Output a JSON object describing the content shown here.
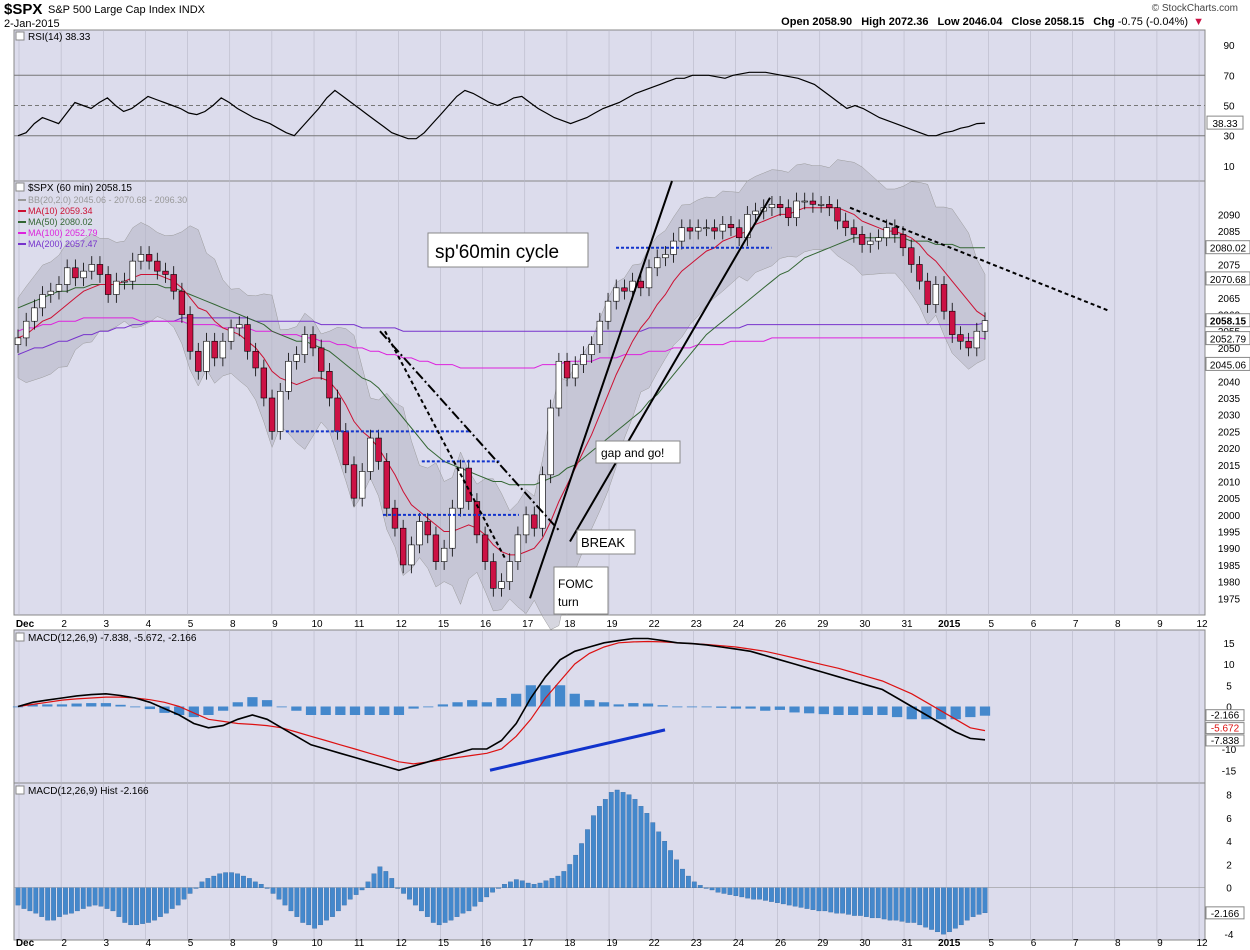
{
  "header": {
    "symbol": "$SPX",
    "description": "S&P 500 Large Cap Index",
    "exchange": "INDX",
    "date": "2-Jan-2015",
    "brand": "© StockCharts.com",
    "open_label": "Open",
    "open": "2058.90",
    "high_label": "High",
    "high": "2072.36",
    "low_label": "Low",
    "low": "2046.04",
    "close_label": "Close",
    "close": "2058.15",
    "chg_label": "Chg",
    "chg": "-0.75 (-0.04%)"
  },
  "colors": {
    "panel_bg": "#dcdcec",
    "up": "#ffffff",
    "down": "#cc1144",
    "bb_fill": "#b4b4c4",
    "ma10": "#cc1133",
    "ma50": "#336633",
    "ma100": "#dd22dd",
    "ma200": "#7733cc",
    "blue": "#1133cc",
    "hist": "#4488cc",
    "grid": "#b8b8c8"
  },
  "chart_data": [
    {
      "type": "line",
      "title": "RSI(14) 38.33",
      "series": [
        {
          "name": "RSI(14)",
          "values": [
            30,
            32,
            38,
            42,
            40,
            38,
            45,
            52,
            50,
            48,
            52,
            55,
            50,
            46,
            48,
            52,
            56,
            54,
            52,
            50,
            48,
            45,
            44,
            46,
            50,
            55,
            52,
            48,
            45,
            42,
            40,
            38,
            35,
            32,
            30,
            36,
            42,
            48,
            55,
            60,
            56,
            52,
            48,
            44,
            40,
            36,
            32,
            30,
            28,
            28,
            32,
            38,
            44,
            50,
            56,
            60,
            58,
            55,
            52,
            50,
            52,
            55,
            56,
            52,
            48,
            45,
            42,
            40,
            38,
            40,
            42,
            45,
            48,
            50,
            52,
            55,
            58,
            60,
            62,
            64,
            66,
            68,
            68,
            70,
            70,
            70,
            69,
            68,
            70,
            71,
            72,
            72,
            72,
            71,
            70,
            69,
            68,
            66,
            64,
            60,
            56,
            52,
            48,
            50,
            48,
            45,
            42,
            40,
            38,
            36,
            34,
            32,
            30,
            30,
            32,
            33,
            35,
            36,
            38,
            38.33
          ]
        }
      ],
      "right_ticks": [
        "90",
        "70",
        "50",
        "30",
        "10"
      ],
      "reference_lines": [
        70,
        50,
        30
      ],
      "ylim": [
        0,
        100
      ],
      "last_value": "38.33"
    },
    {
      "type": "candlestick",
      "title": "$SPX (60 min) 2058.15",
      "legend": [
        {
          "label": "BB(20,2.0) 2045.06 - 2070.68 - 2096.30",
          "color": "#999999"
        },
        {
          "label": "MA(10) 2059.34",
          "color": "#cc1133"
        },
        {
          "label": "MA(50) 2080.02",
          "color": "#336633"
        },
        {
          "label": "MA(100) 2052.79",
          "color": "#dd22dd"
        },
        {
          "label": "MA(200) 2057.47",
          "color": "#7733cc"
        }
      ],
      "x_tick_labels": [
        "Dec",
        "2",
        "3",
        "4",
        "5",
        "8",
        "9",
        "10",
        "11",
        "12",
        "15",
        "16",
        "17",
        "18",
        "19",
        "22",
        "23",
        "24",
        "26",
        "29",
        "30",
        "31",
        "2015",
        "5",
        "6",
        "7",
        "8",
        "9",
        "12"
      ],
      "y_ticks": [
        1975,
        1980,
        1985,
        1990,
        1995,
        2000,
        2005,
        2010,
        2015,
        2020,
        2025,
        2030,
        2035,
        2040,
        2045,
        2050,
        2055,
        2060,
        2065,
        2070,
        2075,
        2080,
        2085,
        2090
      ],
      "ylim": [
        1970,
        2100
      ],
      "closes": [
        2053,
        2058,
        2062,
        2066,
        2067,
        2069,
        2074,
        2071,
        2073,
        2075,
        2072,
        2066,
        2070,
        2070,
        2076,
        2078,
        2076,
        2073,
        2072,
        2067,
        2060,
        2049,
        2043,
        2052,
        2047,
        2052,
        2056,
        2057,
        2049,
        2044,
        2035,
        2025,
        2037,
        2046,
        2048,
        2054,
        2050,
        2043,
        2035,
        2025,
        2015,
        2005,
        2013,
        2023,
        2016,
        2002,
        1996,
        1985,
        1991,
        1998,
        1994,
        1986,
        1990,
        2002,
        2014,
        2004,
        1994,
        1986,
        1978,
        1980,
        1986,
        1994,
        2000,
        1996,
        2012,
        2032,
        2046,
        2041,
        2045,
        2048,
        2051,
        2058,
        2064,
        2068,
        2067,
        2070,
        2068,
        2074,
        2077,
        2078,
        2082,
        2086,
        2085,
        2086,
        2086,
        2085,
        2087,
        2086,
        2083,
        2090,
        2091,
        2092,
        2093,
        2092,
        2089,
        2094,
        2094,
        2093,
        2093,
        2092,
        2088,
        2086,
        2084,
        2081,
        2082,
        2083,
        2086,
        2084,
        2080,
        2075,
        2070,
        2063,
        2069,
        2061,
        2054,
        2052,
        2050,
        2055,
        2058.15
      ],
      "ma10": [
        2053,
        2054,
        2056,
        2058,
        2059,
        2061,
        2063,
        2065,
        2067,
        2068,
        2069,
        2069,
        2069,
        2070,
        2071,
        2072,
        2072,
        2072,
        2071,
        2070,
        2068,
        2065,
        2062,
        2061,
        2058,
        2056,
        2055,
        2054,
        2052,
        2050,
        2047,
        2043,
        2041,
        2040,
        2039,
        2040,
        2041,
        2041,
        2040,
        2037,
        2033,
        2028,
        2025,
        2023,
        2020,
        2016,
        2012,
        2007,
        2003,
        2001,
        1999,
        1997,
        1995,
        1995,
        1996,
        1997,
        1996,
        1994,
        1991,
        1989,
        1988,
        1988,
        1989,
        1990,
        1993,
        1998,
        2004,
        2009,
        2014,
        2019,
        2024,
        2030,
        2036,
        2042,
        2047,
        2052,
        2056,
        2059,
        2063,
        2066,
        2070,
        2073,
        2075,
        2077,
        2079,
        2080,
        2082,
        2083,
        2084,
        2085,
        2087,
        2088,
        2089,
        2090,
        2090,
        2091,
        2092,
        2092,
        2092,
        2092,
        2092,
        2091,
        2090,
        2088,
        2087,
        2086,
        2085,
        2085,
        2084,
        2083,
        2081,
        2078,
        2076,
        2073,
        2070,
        2067,
        2064,
        2061,
        2059.34
      ],
      "ma50": [
        2062,
        2063,
        2064,
        2065,
        2066,
        2067,
        2067,
        2068,
        2068,
        2069,
        2069,
        2069,
        2069,
        2069,
        2069,
        2069,
        2069,
        2069,
        2068,
        2068,
        2067,
        2066,
        2065,
        2064,
        2063,
        2062,
        2061,
        2060,
        2059,
        2058,
        2057,
        2055,
        2054,
        2053,
        2052,
        2052,
        2051,
        2050,
        2049,
        2047,
        2045,
        2043,
        2041,
        2040,
        2038,
        2035,
        2032,
        2029,
        2026,
        2023,
        2020,
        2018,
        2016,
        2015,
        2014,
        2013,
        2012,
        2011,
        2010,
        2010,
        2009,
        2009,
        2009,
        2009,
        2010,
        2011,
        2012,
        2014,
        2015,
        2017,
        2019,
        2021,
        2023,
        2025,
        2027,
        2029,
        2031,
        2034,
        2036,
        2039,
        2042,
        2045,
        2048,
        2051,
        2054,
        2056,
        2058,
        2060,
        2062,
        2064,
        2066,
        2068,
        2070,
        2072,
        2073,
        2075,
        2077,
        2078,
        2079,
        2080,
        2081,
        2082,
        2083,
        2083,
        2083,
        2083,
        2083,
        2083,
        2083,
        2082,
        2082,
        2082,
        2081,
        2081,
        2081,
        2080,
        2080,
        2080,
        2080.02
      ],
      "ma100": [
        2055,
        2056,
        2056,
        2057,
        2057,
        2058,
        2058,
        2058,
        2059,
        2059,
        2059,
        2059,
        2059,
        2059,
        2059,
        2058,
        2058,
        2058,
        2058,
        2058,
        2058,
        2057,
        2057,
        2057,
        2057,
        2056,
        2056,
        2056,
        2056,
        2055,
        2055,
        2055,
        2054,
        2054,
        2054,
        2053,
        2053,
        2052,
        2052,
        2051,
        2051,
        2050,
        2050,
        2049,
        2049,
        2048,
        2048,
        2047,
        2047,
        2046,
        2046,
        2045,
        2045,
        2045,
        2044,
        2044,
        2044,
        2044,
        2044,
        2044,
        2044,
        2044,
        2044,
        2044,
        2045,
        2045,
        2045,
        2046,
        2046,
        2046,
        2046,
        2047,
        2047,
        2047,
        2048,
        2048,
        2048,
        2049,
        2049,
        2049,
        2050,
        2050,
        2050,
        2051,
        2051,
        2051,
        2051,
        2052,
        2052,
        2052,
        2052,
        2052,
        2053,
        2053,
        2053,
        2053,
        2053,
        2053,
        2053,
        2053,
        2053,
        2053,
        2053,
        2053,
        2053,
        2053,
        2053,
        2053,
        2053,
        2053,
        2053,
        2053,
        2053,
        2053,
        2053,
        2053,
        2053,
        2053,
        2052.79
      ],
      "ma200": [
        2048,
        2049,
        2050,
        2050,
        2051,
        2052,
        2052,
        2053,
        2054,
        2054,
        2055,
        2055,
        2056,
        2056,
        2057,
        2057,
        2058,
        2058,
        2058,
        2058,
        2059,
        2059,
        2059,
        2059,
        2059,
        2059,
        2059,
        2059,
        2059,
        2058,
        2058,
        2058,
        2058,
        2058,
        2058,
        2058,
        2058,
        2057,
        2057,
        2057,
        2057,
        2057,
        2056,
        2056,
        2056,
        2056,
        2056,
        2055,
        2055,
        2055,
        2055,
        2055,
        2055,
        2055,
        2055,
        2055,
        2055,
        2055,
        2055,
        2055,
        2055,
        2055,
        2055,
        2055,
        2055,
        2055,
        2055,
        2055,
        2055,
        2055,
        2055,
        2055,
        2055,
        2055,
        2055,
        2055,
        2055,
        2056,
        2056,
        2056,
        2056,
        2056,
        2056,
        2056,
        2056,
        2056,
        2056,
        2056,
        2056,
        2057,
        2057,
        2057,
        2057,
        2057,
        2057,
        2057,
        2057,
        2057,
        2057,
        2057,
        2057,
        2057,
        2057,
        2057,
        2057,
        2057,
        2057,
        2057,
        2057,
        2057,
        2057,
        2057,
        2057,
        2057,
        2057,
        2057,
        2057,
        2057,
        2057.47
      ],
      "price_labels": [
        {
          "value": 2080.02,
          "text": "2080.02"
        },
        {
          "value": 2070.68,
          "text": "2070.68"
        },
        {
          "value": 2058.15,
          "text": "2058.15"
        },
        {
          "value": 2052.79,
          "text": "2052.79"
        },
        {
          "value": 2045.06,
          "text": "2045.06"
        }
      ],
      "annotations": [
        "sp'60min cycle",
        "gap and go!",
        "BREAK",
        "FOMC",
        "turn"
      ]
    },
    {
      "type": "line",
      "title": "MACD(12,26,9) -7.838, -5.672, -2.166",
      "series": [
        {
          "name": "MACD",
          "values": [
            0,
            1,
            1.5,
            2,
            2.5,
            2.8,
            3,
            2.6,
            2,
            1,
            -0.5,
            -2,
            -4,
            -5,
            -4.5,
            -3,
            -2,
            -3,
            -5,
            -7,
            -9,
            -10,
            -11,
            -12,
            -13,
            -14,
            -15,
            -14,
            -13,
            -12,
            -11,
            -10,
            -10,
            -8,
            -4,
            2,
            7,
            11,
            13,
            14,
            15,
            15.5,
            16,
            16,
            15.5,
            15,
            14.8,
            14.5,
            14,
            13.5,
            13,
            12,
            11,
            10,
            9,
            8,
            7,
            6,
            5,
            4,
            2,
            0,
            -2,
            -4,
            -6,
            -7.5,
            -7.838
          ]
        },
        {
          "name": "Signal",
          "values": [
            0,
            0.5,
            1,
            1.5,
            1.8,
            2,
            2.2,
            2.2,
            2,
            1.6,
            1,
            0,
            -1.5,
            -3,
            -3.5,
            -4,
            -4.2,
            -4.5,
            -5,
            -6,
            -7,
            -8,
            -9,
            -10,
            -11,
            -12,
            -13,
            -13.5,
            -13,
            -12.5,
            -12,
            -11.5,
            -11,
            -10,
            -7,
            -3,
            2,
            6,
            10,
            12.5,
            14,
            15,
            15.2,
            15.3,
            15.2,
            15,
            14.8,
            14.6,
            14.3,
            14,
            13.5,
            13,
            12.2,
            11.4,
            10.6,
            9.8,
            9,
            8,
            7,
            6,
            4.5,
            3,
            1,
            -1,
            -3,
            -5,
            -5.672
          ]
        }
      ],
      "histogram": [
        0,
        0.5,
        0.5,
        0.5,
        0.7,
        0.8,
        0.8,
        0.4,
        0,
        -0.6,
        -1.5,
        -2,
        -2.5,
        -2,
        -1,
        1,
        2.2,
        1.5,
        0,
        -1,
        -2,
        -2,
        -2,
        -2,
        -2,
        -2,
        -2,
        -0.5,
        0,
        0.5,
        1,
        1.5,
        1,
        2,
        3,
        5,
        5,
        5,
        3,
        1.5,
        1,
        0.5,
        0.8,
        0.7,
        0.3,
        0,
        0,
        -0.1,
        -0.3,
        -0.5,
        -0.5,
        -1,
        -0.8,
        -1.4,
        -1.6,
        -1.8,
        -2,
        -2,
        -2,
        -2,
        -2.5,
        -3,
        -3,
        -3,
        -3,
        -2.5,
        -2.166
      ],
      "right_ticks": [
        "15",
        "10",
        "5",
        "0",
        "-5",
        "-10",
        "-15"
      ],
      "ylim": [
        -18,
        18
      ],
      "value_labels": [
        "-2.166",
        "-5.672",
        "-7.838"
      ]
    },
    {
      "type": "bar",
      "title": "MACD(12,26,9) Hist -2.166",
      "values": [
        -1.5,
        -1.8,
        -2,
        -2.2,
        -2.5,
        -2.8,
        -2.8,
        -2.5,
        -2.3,
        -2.2,
        -2,
        -1.8,
        -1.6,
        -1.5,
        -1.6,
        -1.8,
        -2,
        -2.5,
        -3,
        -3.2,
        -3.2,
        -3.1,
        -3,
        -2.8,
        -2.5,
        -2.2,
        -1.8,
        -1.5,
        -1,
        -0.5,
        0,
        0.5,
        0.8,
        1.0,
        1.2,
        1.3,
        1.3,
        1.2,
        1.0,
        0.8,
        0.5,
        0.3,
        0,
        -0.5,
        -1,
        -1.5,
        -2,
        -2.5,
        -3,
        -3.2,
        -3.5,
        -3.2,
        -2.8,
        -2.5,
        -2,
        -1.5,
        -1,
        -0.6,
        -0.2,
        0.5,
        1.2,
        1.8,
        1.4,
        0.8,
        0,
        -0.5,
        -1,
        -1.5,
        -2,
        -2.5,
        -3,
        -3.2,
        -3,
        -2.8,
        -2.5,
        -2.2,
        -2,
        -1.6,
        -1.2,
        -0.8,
        -0.4,
        0,
        0.3,
        0.5,
        0.7,
        0.6,
        0.4,
        0.3,
        0.4,
        0.6,
        0.8,
        1,
        1.4,
        2,
        2.8,
        3.8,
        5,
        6.2,
        7,
        7.6,
        8.2,
        8.4,
        8.2,
        8,
        7.6,
        7,
        6.4,
        5.6,
        4.8,
        4,
        3.2,
        2.4,
        1.6,
        1,
        0.5,
        0.2,
        0,
        -0.2,
        -0.4,
        -0.5,
        -0.6,
        -0.7,
        -0.8,
        -0.9,
        -1.0,
        -1.0,
        -1.1,
        -1.2,
        -1.3,
        -1.4,
        -1.5,
        -1.6,
        -1.7,
        -1.8,
        -1.9,
        -2.0,
        -2.0,
        -2.1,
        -2.2,
        -2.2,
        -2.3,
        -2.4,
        -2.4,
        -2.5,
        -2.6,
        -2.6,
        -2.7,
        -2.8,
        -2.8,
        -2.9,
        -3.0,
        -3.0,
        -3.2,
        -3.4,
        -3.6,
        -3.8,
        -4.0,
        -3.8,
        -3.5,
        -3.2,
        -2.8,
        -2.5,
        -2.3,
        -2.166
      ],
      "right_ticks": [
        "8",
        "6",
        "4",
        "2",
        "0",
        "-2",
        "-4"
      ],
      "ylim": [
        -4.5,
        9
      ],
      "last_value": "-2.166"
    }
  ]
}
